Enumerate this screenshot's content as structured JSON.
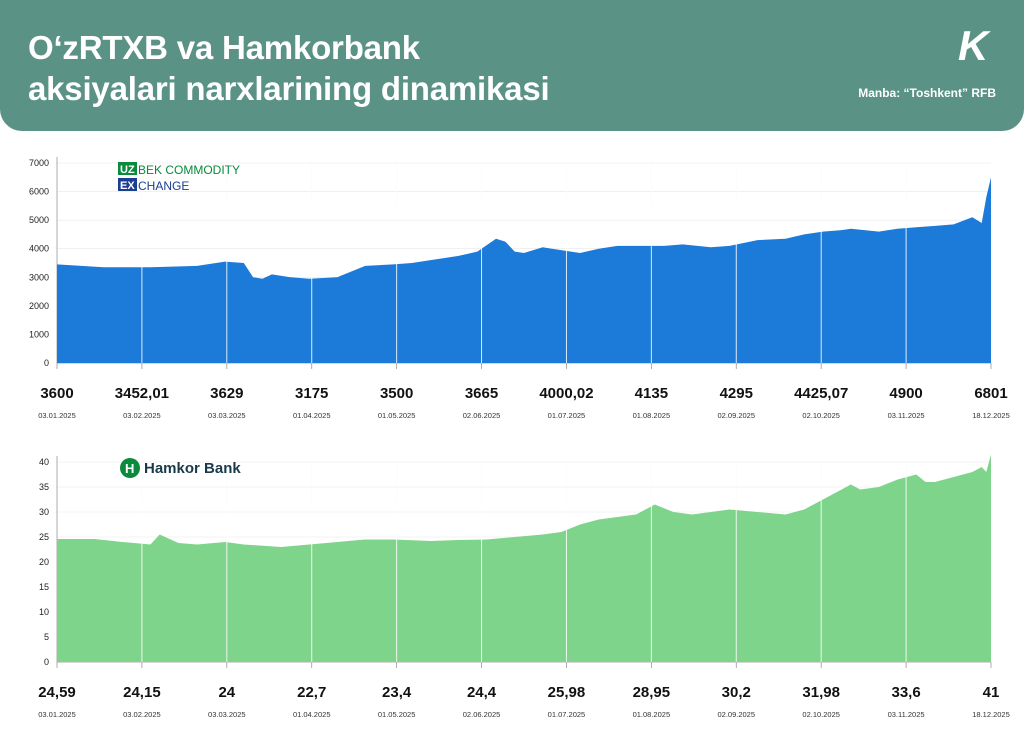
{
  "header": {
    "title_line1": "O‘zRTXB va Hamkorbank",
    "title_line2": "aksiyalari narxlarining dinamikasi",
    "source": "Manba: “Toshkent” RFB",
    "brand_letter": "K"
  },
  "logos": {
    "uzex_line1": "BEK COMMODITY",
    "uzex_line2": "CHANGE",
    "uzex_box1": "UZ",
    "uzex_box2": "EX",
    "hamkor": "Hamkor Bank"
  },
  "chart_data": [
    {
      "type": "area",
      "name": "O‘zRTXB",
      "color": "#1c7ad9",
      "ylim": [
        0,
        7000
      ],
      "yticks": [
        0,
        1000,
        2000,
        3000,
        4000,
        5000,
        6000,
        7000
      ],
      "dates": [
        "03.01.2025",
        "03.02.2025",
        "03.03.2025",
        "01.04.2025",
        "01.05.2025",
        "02.06.2025",
        "01.07.2025",
        "01.08.2025",
        "02.09.2025",
        "02.10.2025",
        "03.11.2025",
        "18.12.2025"
      ],
      "price_labels": [
        "3600",
        "3452,01",
        "3629",
        "3175",
        "3500",
        "3665",
        "4000,02",
        "4135",
        "4295",
        "4425,07",
        "4900",
        "6801"
      ],
      "x": [
        0,
        0.05,
        0.1,
        0.15,
        0.18,
        0.2,
        0.21,
        0.22,
        0.23,
        0.25,
        0.27,
        0.3,
        0.33,
        0.36,
        0.38,
        0.4,
        0.43,
        0.45,
        0.47,
        0.48,
        0.49,
        0.5,
        0.52,
        0.53,
        0.56,
        0.58,
        0.6,
        0.62,
        0.65,
        0.67,
        0.7,
        0.72,
        0.75,
        0.78,
        0.8,
        0.82,
        0.84,
        0.85,
        0.88,
        0.9,
        0.92,
        0.94,
        0.96,
        0.98,
        0.99,
        0.995,
        1.0
      ],
      "y": [
        3450,
        3350,
        3350,
        3400,
        3550,
        3500,
        3000,
        2950,
        3100,
        3000,
        2950,
        3000,
        3400,
        3450,
        3500,
        3600,
        3750,
        3900,
        4350,
        4250,
        3900,
        3850,
        4050,
        4000,
        3850,
        4000,
        4100,
        4100,
        4100,
        4150,
        4050,
        4100,
        4300,
        4350,
        4500,
        4600,
        4650,
        4700,
        4600,
        4700,
        4750,
        4800,
        4850,
        5100,
        4900,
        5800,
        6500
      ]
    },
    {
      "type": "area",
      "name": "Hamkorbank",
      "color": "#7ed48a",
      "ylim": [
        0,
        40
      ],
      "yticks": [
        0,
        5,
        10,
        15,
        20,
        25,
        30,
        35,
        40
      ],
      "dates": [
        "03.01.2025",
        "03.02.2025",
        "03.03.2025",
        "01.04.2025",
        "01.05.2025",
        "02.06.2025",
        "01.07.2025",
        "01.08.2025",
        "02.09.2025",
        "02.10.2025",
        "03.11.2025",
        "18.12.2025"
      ],
      "price_labels": [
        "24,59",
        "24,15",
        "24",
        "22,7",
        "23,4",
        "24,4",
        "25,98",
        "28,95",
        "30,2",
        "31,98",
        "33,6",
        "41"
      ],
      "x": [
        0,
        0.04,
        0.07,
        0.1,
        0.11,
        0.13,
        0.15,
        0.18,
        0.2,
        0.24,
        0.27,
        0.3,
        0.33,
        0.36,
        0.4,
        0.43,
        0.46,
        0.49,
        0.52,
        0.54,
        0.56,
        0.58,
        0.6,
        0.62,
        0.64,
        0.66,
        0.68,
        0.7,
        0.72,
        0.75,
        0.78,
        0.8,
        0.82,
        0.84,
        0.85,
        0.86,
        0.88,
        0.9,
        0.92,
        0.93,
        0.94,
        0.96,
        0.98,
        0.99,
        0.995,
        1.0
      ],
      "y": [
        24.6,
        24.6,
        24.0,
        23.5,
        25.5,
        23.8,
        23.5,
        24.0,
        23.5,
        23.0,
        23.5,
        24.0,
        24.5,
        24.5,
        24.2,
        24.4,
        24.5,
        25.0,
        25.5,
        26.0,
        27.5,
        28.5,
        29.0,
        29.5,
        31.5,
        30.0,
        29.5,
        30.0,
        30.5,
        30.0,
        29.5,
        30.5,
        32.5,
        34.5,
        35.5,
        34.5,
        35.0,
        36.5,
        37.5,
        36.0,
        36.0,
        37.0,
        38.0,
        39.0,
        38.0,
        41.5
      ]
    }
  ]
}
